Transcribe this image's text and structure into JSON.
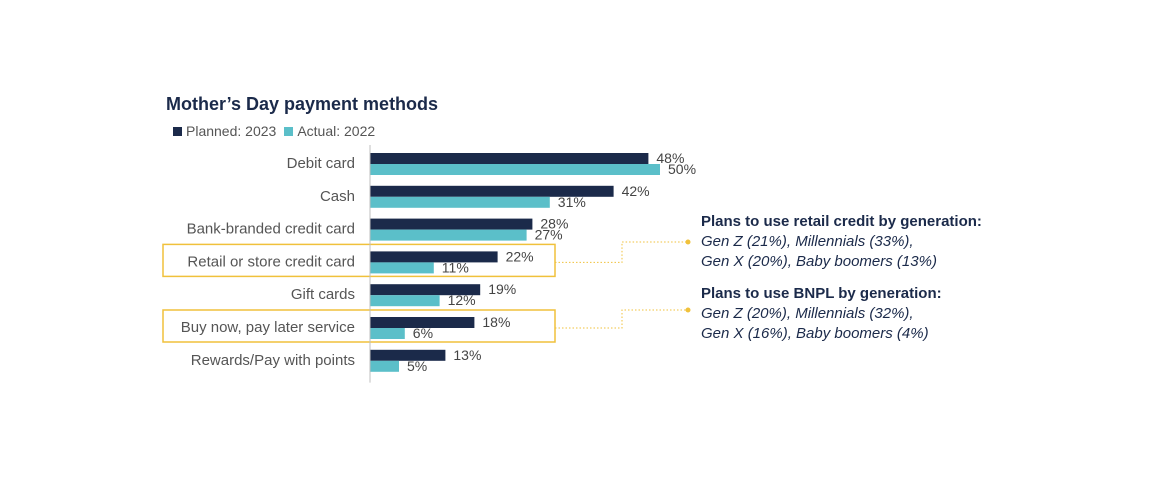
{
  "chart_data": {
    "type": "bar",
    "orientation": "horizontal",
    "title": "Mother’s Day payment methods",
    "categories": [
      "Debit card",
      "Cash",
      "Bank-branded credit card",
      "Retail or store credit card",
      "Gift cards",
      "Buy now, pay later service",
      "Rewards/Pay with points"
    ],
    "series": [
      {
        "name": "Planned: 2023",
        "color": "#1b2a4a",
        "values": [
          48,
          42,
          28,
          22,
          19,
          18,
          13
        ],
        "labels": [
          "48%",
          "42%",
          "28%",
          "22%",
          "19%",
          "18%",
          "13%"
        ]
      },
      {
        "name": "Actual: 2022",
        "color": "#5bbfc9",
        "values": [
          50,
          31,
          27,
          11,
          12,
          6,
          5
        ],
        "labels": [
          "50%",
          "31%",
          "27%",
          "11%",
          "12%",
          "6%",
          "5%"
        ]
      }
    ],
    "xlim": [
      0,
      60
    ],
    "highlighted_categories": [
      "Retail or store credit card",
      "Buy now, pay later service"
    ],
    "highlight_color": "#f0c13b",
    "legend_position": "top-left"
  },
  "callouts": {
    "retail": {
      "title": "Plans to use retail credit by generation:",
      "line1": "Gen Z (21%), Millennials (33%),",
      "line2": "Gen X (20%), Baby boomers (13%)"
    },
    "bnpl": {
      "title": "Plans to use BNPL by generation:",
      "line1": "Gen Z (20%), Millennials (32%),",
      "line2": "Gen X (16%), Baby boomers (4%)"
    }
  }
}
